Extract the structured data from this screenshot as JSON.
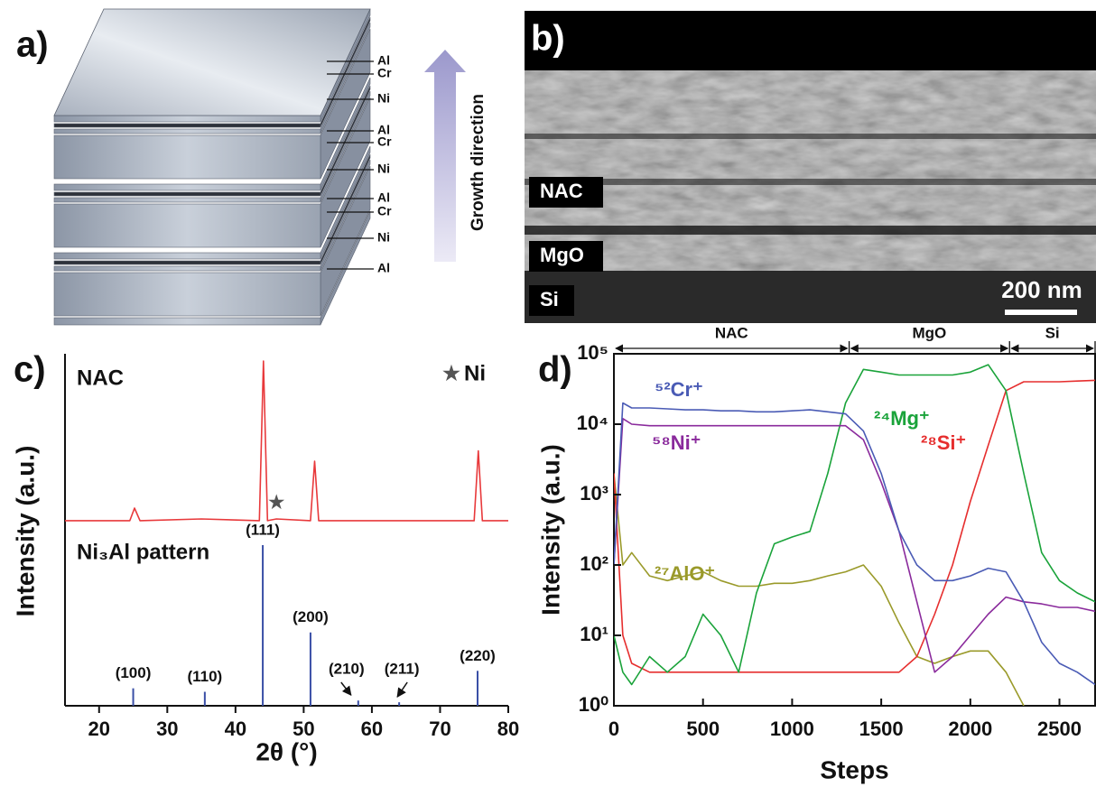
{
  "panel_a": {
    "label": "a)",
    "layers": [
      "Al",
      "Cr",
      "Ni",
      "Al",
      "Cr",
      "Ni",
      "Al",
      "Cr",
      "Ni",
      "Al"
    ],
    "arrow_label": "Growth direction"
  },
  "panel_b": {
    "label": "b)",
    "regions": [
      "NAC",
      "MgO",
      "Si"
    ],
    "scale_bar": "200 nm"
  },
  "chart_data": [
    {
      "type": "line",
      "panel_label": "c)",
      "xlabel": "2θ (°)",
      "ylabel": "Intensity (a.u.)",
      "xlim": [
        15,
        80
      ],
      "xticks": [
        20,
        30,
        40,
        50,
        60,
        70,
        80
      ],
      "ylim": [
        0,
        100
      ],
      "series": [
        {
          "name": "NAC",
          "color": "#e8393b",
          "x": [
            15,
            24.5,
            25.2,
            26,
            35,
            43.5,
            44.1,
            44.7,
            46,
            51,
            51.6,
            52.2,
            60,
            75,
            75.6,
            76.2,
            80
          ],
          "values": [
            53,
            53,
            56.6,
            53,
            53.5,
            53,
            98.7,
            53,
            53.5,
            53,
            70,
            53,
            53,
            53,
            73,
            53,
            53
          ]
        }
      ],
      "sticks": {
        "name": "Ni₃Al pattern",
        "color": "#3a4fa6",
        "x": [
          25,
          35.5,
          44,
          51,
          58,
          64,
          75.5
        ],
        "values": [
          5,
          4,
          46,
          21,
          1.5,
          1,
          10
        ],
        "labels": [
          "(100)",
          "(110)",
          "(111)",
          "(200)",
          "(210)",
          "(211)",
          "(220)"
        ]
      },
      "marker": {
        "symbol": "★",
        "label": "Ni",
        "x": 46,
        "y": 58
      }
    },
    {
      "type": "line",
      "panel_label": "d)",
      "xlabel": "Steps",
      "ylabel": "Intensity (a.u.)",
      "log_y": true,
      "xlim": [
        0,
        2700
      ],
      "xticks": [
        0,
        500,
        1000,
        1500,
        2000,
        2500
      ],
      "ylim": [
        1,
        100000
      ],
      "yticks": [
        {
          "value": 1,
          "label": "10⁰"
        },
        {
          "value": 10,
          "label": "10¹"
        },
        {
          "value": 100,
          "label": "10²"
        },
        {
          "value": 1000,
          "label": "10³"
        },
        {
          "value": 10000,
          "label": "10⁴"
        },
        {
          "value": 100000,
          "label": "10⁵"
        }
      ],
      "x": [
        0,
        50,
        100,
        200,
        300,
        400,
        500,
        600,
        700,
        800,
        900,
        1000,
        1100,
        1200,
        1300,
        1400,
        1500,
        1600,
        1700,
        1800,
        1900,
        2000,
        2100,
        2200,
        2300,
        2400,
        2500,
        2600,
        2700
      ],
      "series": [
        {
          "name": "²⁷AlO⁺",
          "color": "#9a9a2a",
          "values": [
            2000,
            100,
            150,
            70,
            60,
            70,
            80,
            60,
            50,
            50,
            55,
            55,
            60,
            70,
            80,
            100,
            50,
            15,
            5,
            4,
            5,
            6,
            6,
            3,
            1,
            null,
            null,
            null,
            null
          ]
        },
        {
          "name": "²⁸Si⁺",
          "color": "#e62e2e",
          "values": [
            2000,
            10,
            4,
            3,
            3,
            3,
            3,
            3,
            3,
            3,
            3,
            3,
            3,
            3,
            3,
            3,
            3,
            3,
            5,
            20,
            100,
            800,
            5000,
            30000,
            40000,
            40000,
            40000,
            41000,
            42000
          ]
        },
        {
          "name": "²⁴Mg⁺",
          "color": "#1aa33a",
          "values": [
            10,
            3,
            2,
            5,
            3,
            5,
            20,
            10,
            3,
            40,
            200,
            250,
            300,
            2000,
            20000,
            60000,
            55000,
            50000,
            50000,
            50000,
            50000,
            55000,
            70000,
            30000,
            2000,
            150,
            60,
            40,
            30
          ]
        },
        {
          "name": "⁵⁸Ni⁺",
          "color": "#8a2a9c",
          "values": [
            100,
            12000,
            10000,
            9500,
            9500,
            9500,
            9500,
            9500,
            9500,
            9500,
            9500,
            9500,
            9500,
            9500,
            9500,
            6000,
            1500,
            300,
            30,
            3,
            5,
            10,
            20,
            35,
            30,
            28,
            25,
            25,
            22
          ]
        },
        {
          "name": "⁵²Cr⁺",
          "color": "#4a5bb5",
          "values": [
            100,
            20000,
            17000,
            17000,
            16500,
            16000,
            16000,
            15500,
            15500,
            15000,
            15000,
            15500,
            16000,
            15000,
            14000,
            8000,
            2000,
            300,
            100,
            60,
            60,
            70,
            90,
            80,
            30,
            8,
            4,
            3,
            2
          ]
        }
      ],
      "regions": [
        {
          "label": "NAC",
          "from": 0,
          "to": 1320
        },
        {
          "label": "MgO",
          "from": 1320,
          "to": 2220
        },
        {
          "label": "Si",
          "from": 2220,
          "to": 2700
        }
      ]
    }
  ]
}
